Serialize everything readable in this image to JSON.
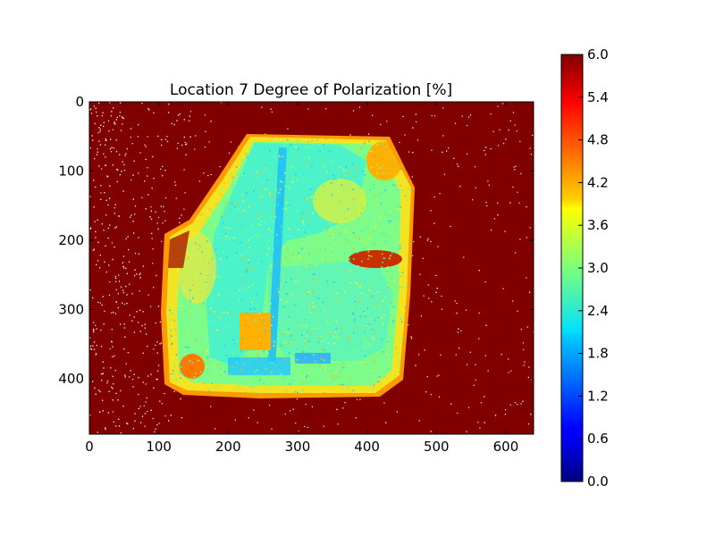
{
  "chart_data": {
    "type": "heatmap",
    "title": "Location 7 Degree of Polarization [%]",
    "xlabel": "",
    "ylabel": "",
    "xlim": [
      0,
      640
    ],
    "ylim": [
      480,
      0
    ],
    "x_ticks": [
      "0",
      "100",
      "200",
      "300",
      "400",
      "500",
      "600"
    ],
    "x_tick_values": [
      0,
      100,
      200,
      300,
      400,
      500,
      600
    ],
    "y_ticks": [
      "0",
      "100",
      "200",
      "300",
      "400"
    ],
    "y_tick_values": [
      0,
      100,
      200,
      300,
      400
    ],
    "colorbar": {
      "min": 0.0,
      "max": 6.0,
      "ticks": [
        "0.0",
        "0.6",
        "1.2",
        "1.8",
        "2.4",
        "3.0",
        "3.6",
        "4.2",
        "4.8",
        "5.4",
        "6.0"
      ],
      "tick_values": [
        0.0,
        0.6,
        1.2,
        1.8,
        2.4,
        3.0,
        3.6,
        4.2,
        4.8,
        5.4,
        6.0
      ],
      "colormap": "jet"
    },
    "background_value": 6.0,
    "typical_object_value": 3.0,
    "grid": false
  }
}
